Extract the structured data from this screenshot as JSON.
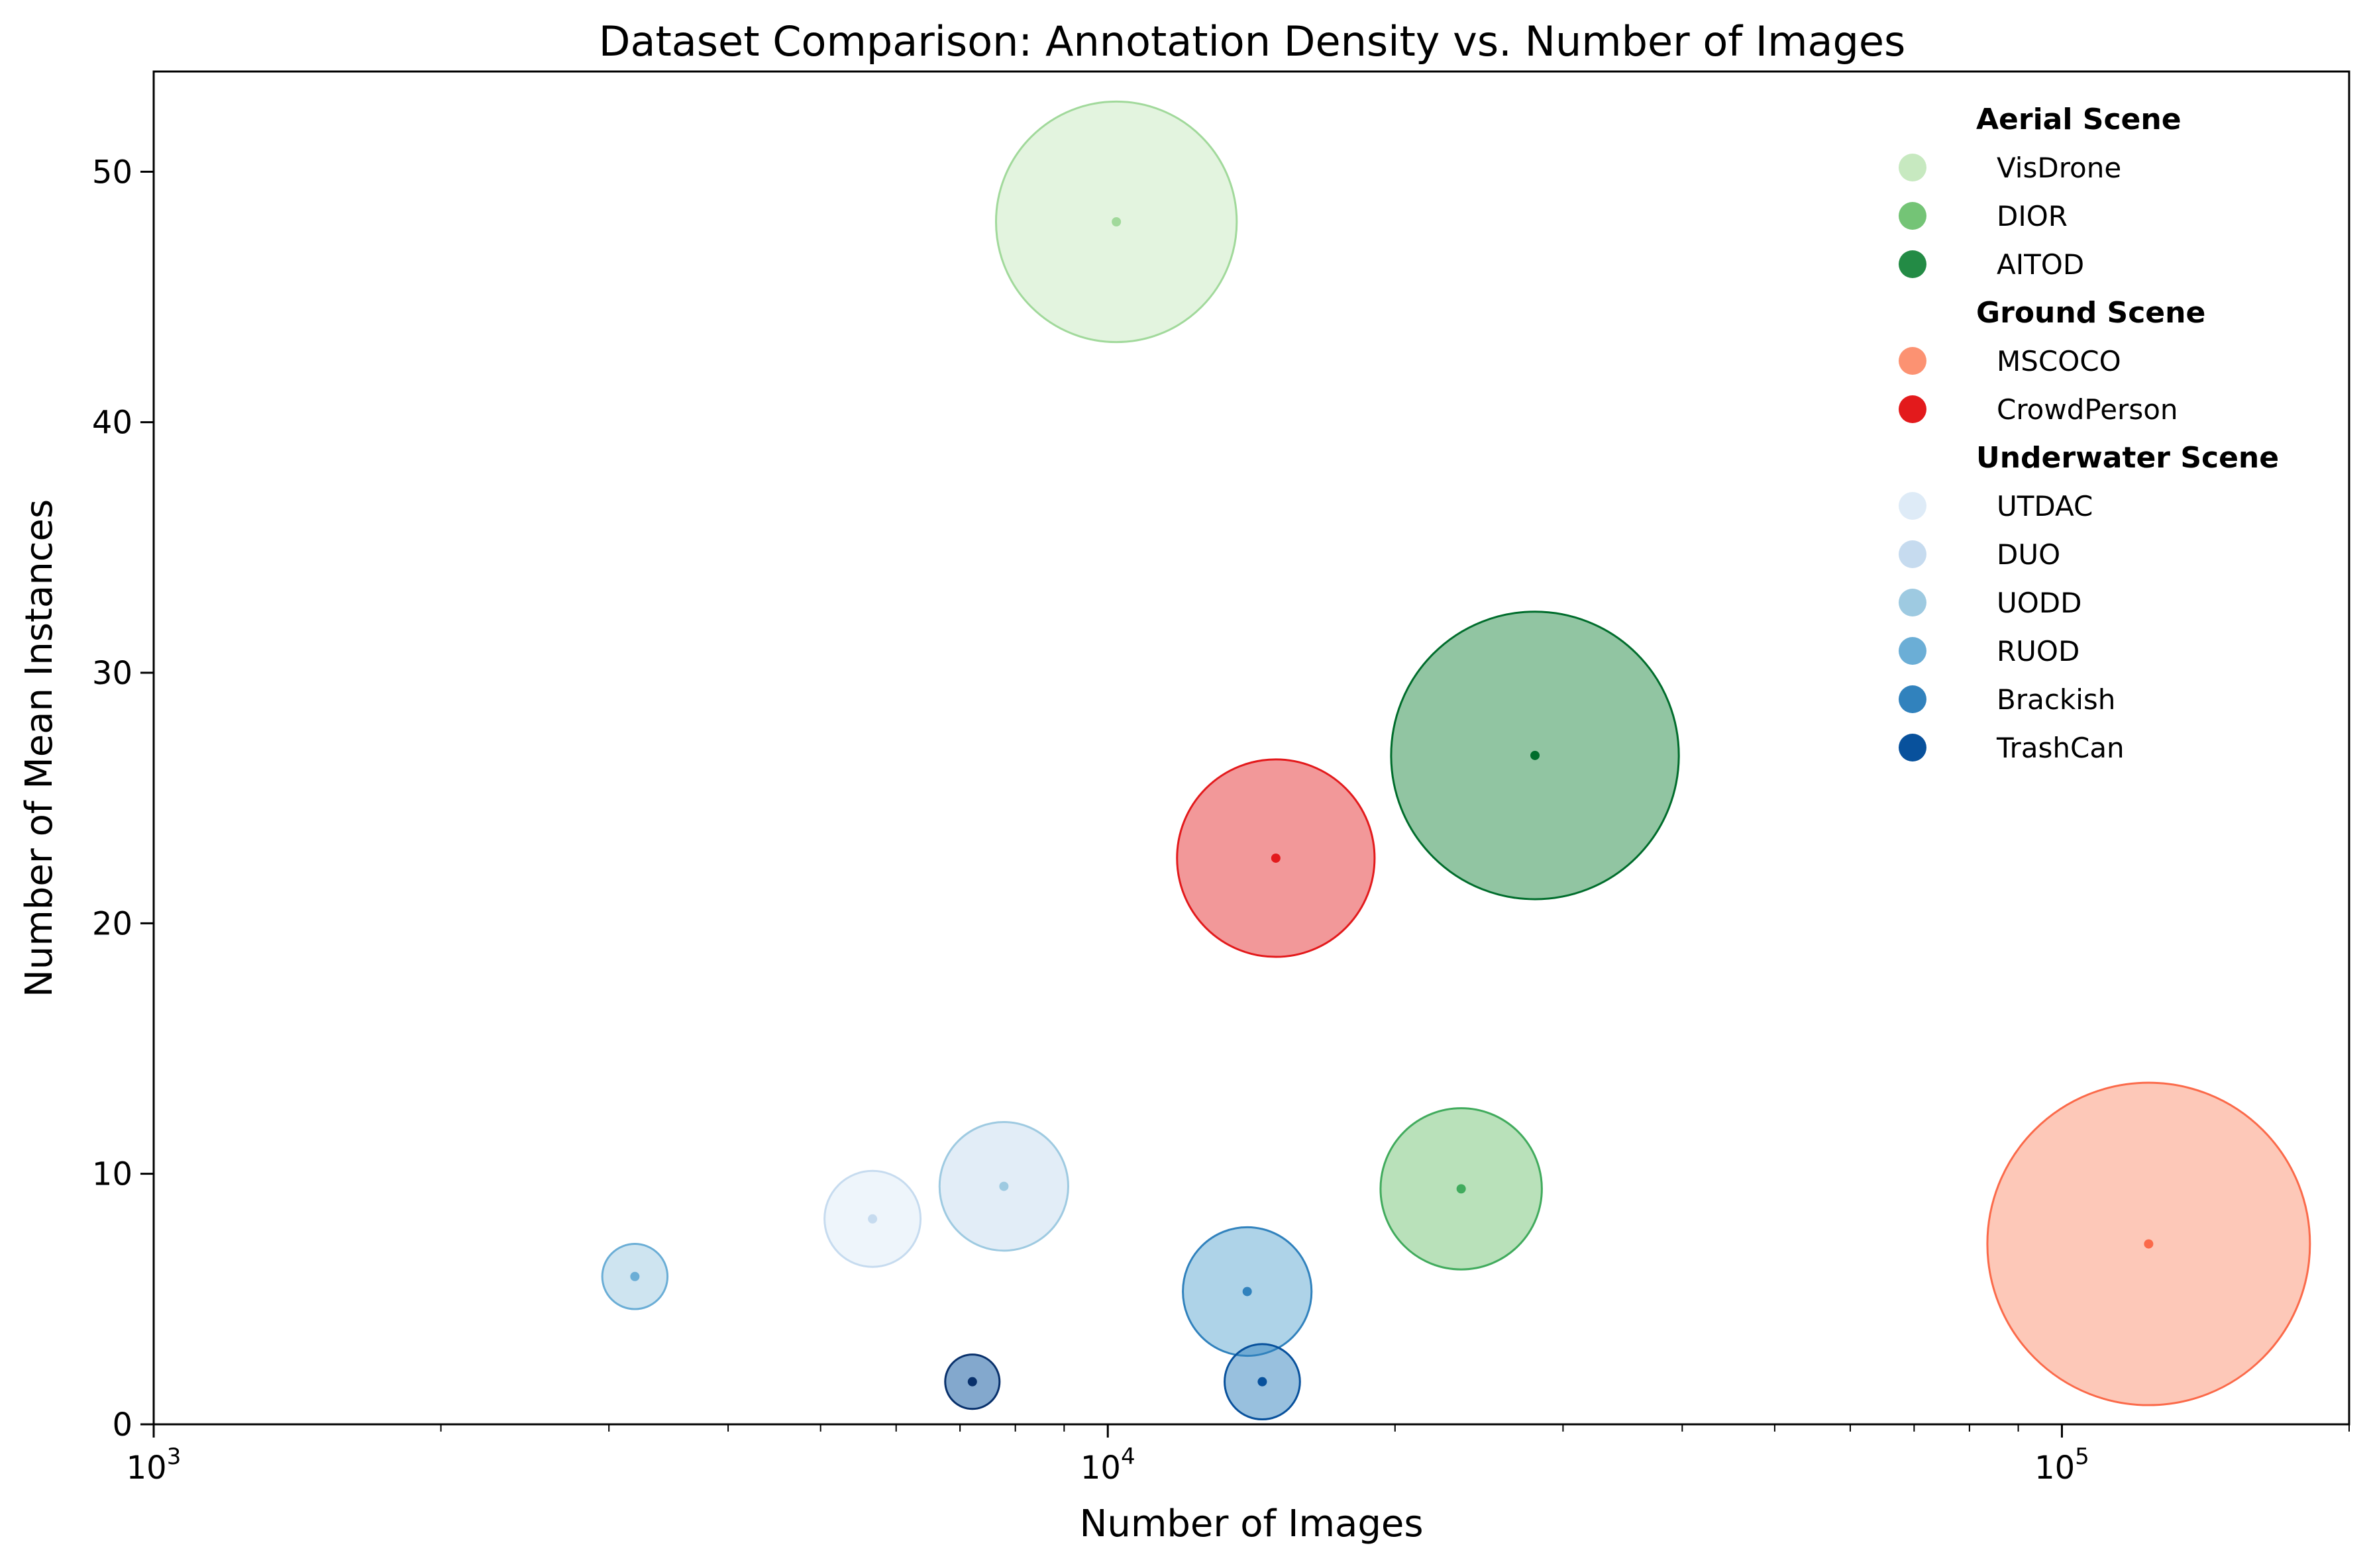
{
  "chart_data": {
    "type": "scatter",
    "title": "Dataset Comparison: Annotation Density vs. Number of Images",
    "xlabel": "Number of Images",
    "ylabel": "Number of Mean Instances",
    "xscale": "log",
    "xlim": [
      1000,
      200000
    ],
    "ylim": [
      0,
      54
    ],
    "xticks": [
      {
        "value": 1000,
        "base": "10",
        "exp": "3"
      },
      {
        "value": 10000,
        "base": "10",
        "exp": "4"
      },
      {
        "value": 100000,
        "base": "10",
        "exp": "5"
      }
    ],
    "yticks": [
      0,
      10,
      20,
      30,
      40,
      50
    ],
    "grid": false,
    "legend_position": "top-right",
    "groups": [
      {
        "name": "Aerial Scene",
        "series": [
          {
            "name": "VisDrone",
            "x": 10209,
            "y": 48.0,
            "size": 490000,
            "color": "#c7e9c0",
            "alpha": 0.5
          },
          {
            "name": "DIOR",
            "x": 23463,
            "y": 9.4,
            "size": 220000,
            "color": "#74c476",
            "alpha": 0.5
          },
          {
            "name": "AITOD",
            "x": 28036,
            "y": 26.7,
            "size": 700000,
            "color": "#238b45",
            "alpha": 0.5
          }
        ]
      },
      {
        "name": "Ground Scene",
        "series": [
          {
            "name": "MSCOCO",
            "x": 123287,
            "y": 7.2,
            "size": 880000,
            "color": "#fc9272",
            "alpha": 0.5
          },
          {
            "name": "CrowdPerson",
            "x": 15000,
            "y": 22.6,
            "size": 330000,
            "color": "#e31a1c",
            "alpha": 0.45
          }
        ]
      },
      {
        "name": "Underwater Scene",
        "series": [
          {
            "name": "UTDAC",
            "x": 5668,
            "y": 8.2,
            "size": 78000,
            "color": "#deebf7",
            "alpha": 0.5
          },
          {
            "name": "DUO",
            "x": 7782,
            "y": 9.5,
            "size": 140000,
            "color": "#c6dbef",
            "alpha": 0.5
          },
          {
            "name": "UODD",
            "x": 3194,
            "y": 5.9,
            "size": 36000,
            "color": "#9ecae1",
            "alpha": 0.5
          },
          {
            "name": "RUOD",
            "x": 14000,
            "y": 5.3,
            "size": 140000,
            "color": "#6baed6",
            "alpha": 0.55
          },
          {
            "name": "Brackish",
            "x": 14518,
            "y": 1.7,
            "size": 48000,
            "color": "#3182bd",
            "alpha": 0.5
          },
          {
            "name": "TrashCan",
            "x": 7212,
            "y": 1.7,
            "size": 25000,
            "color": "#08519c",
            "alpha": 0.5
          }
        ]
      }
    ],
    "legend_marker_colors": {
      "VisDrone": "#c7e9c0",
      "DIOR": "#74c476",
      "AITOD": "#238b45",
      "MSCOCO": "#fc9272",
      "CrowdPerson": "#e31a1c",
      "UTDAC": "#deebf7",
      "DUO": "#c6dbef",
      "UODD": "#9ecae1",
      "RUOD": "#6baed6",
      "Brackish": "#3182bd",
      "TrashCan": "#08519c"
    },
    "edge_colors": {
      "VisDrone": "#a1d99b",
      "DIOR": "#41ab5d",
      "AITOD": "#006d2c",
      "MSCOCO": "#fb6a4a",
      "CrowdPerson": "#e31a1c",
      "UTDAC": "#c6dbef",
      "DUO": "#9ecae1",
      "UODD": "#6baed6",
      "RUOD": "#3182bd",
      "Brackish": "#08519c",
      "TrashCan": "#08306b"
    }
  }
}
